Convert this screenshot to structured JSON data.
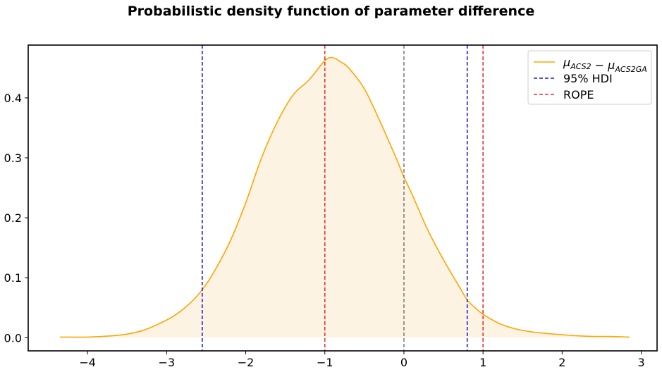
{
  "chart_data": {
    "type": "area",
    "title": "Probabilistic density function of parameter difference",
    "xlabel": "",
    "ylabel": "",
    "xlim": [
      -4.75,
      3.2
    ],
    "ylim": [
      -0.022,
      0.488
    ],
    "xticks": [
      -4,
      -3,
      -2,
      -1,
      0,
      1,
      2,
      3
    ],
    "xtick_labels": [
      "−4",
      "−3",
      "−2",
      "−1",
      "0",
      "1",
      "2",
      "3"
    ],
    "yticks": [
      0.0,
      0.1,
      0.2,
      0.3,
      0.4
    ],
    "ytick_labels": [
      "0.0",
      "0.1",
      "0.2",
      "0.3",
      "0.4"
    ],
    "grid": false,
    "legend_position": "top-right",
    "series": [
      {
        "name": "μACS2 − μACS2GA",
        "legend_parts": [
          {
            "text": "μ",
            "style": "italic"
          },
          {
            "text": "ACS2",
            "style": "sub"
          },
          {
            "text": " − ",
            "style": "normal"
          },
          {
            "text": "μ",
            "style": "italic"
          },
          {
            "text": "ACS2GA",
            "style": "sub"
          }
        ],
        "color": "#FFA500",
        "fill_color": "#FDF3E3",
        "x": [
          -4.35,
          -4.0,
          -3.7,
          -3.5,
          -3.3,
          -3.1,
          -2.9,
          -2.7,
          -2.55,
          -2.4,
          -2.2,
          -2.0,
          -1.8,
          -1.6,
          -1.4,
          -1.2,
          -1.0,
          -0.9,
          -0.8,
          -0.7,
          -0.5,
          -0.3,
          -0.1,
          0.0,
          0.1,
          0.3,
          0.5,
          0.7,
          0.8,
          0.9,
          1.0,
          1.2,
          1.4,
          1.6,
          1.8,
          2.0,
          2.2,
          2.4,
          2.6,
          2.85
        ],
        "values": [
          0.001,
          0.001,
          0.003,
          0.006,
          0.012,
          0.023,
          0.037,
          0.058,
          0.08,
          0.11,
          0.16,
          0.225,
          0.3,
          0.36,
          0.405,
          0.43,
          0.462,
          0.467,
          0.46,
          0.45,
          0.415,
          0.36,
          0.3,
          0.268,
          0.24,
          0.18,
          0.13,
          0.085,
          0.063,
          0.05,
          0.039,
          0.024,
          0.015,
          0.01,
          0.007,
          0.005,
          0.003,
          0.002,
          0.002,
          0.001
        ]
      }
    ],
    "vlines": [
      {
        "label": "95% HDI",
        "x": -2.55,
        "color": "#1F1FCC",
        "in_legend": true
      },
      {
        "label": "",
        "x": 0.8,
        "color": "#1F1FCC",
        "in_legend": false
      },
      {
        "label": "ROPE",
        "x": -1.0,
        "color": "#E8312E",
        "in_legend": true
      },
      {
        "label": "",
        "x": 1.0,
        "color": "#E8312E",
        "in_legend": false
      },
      {
        "label": "",
        "x": 0.0,
        "color": "#7F7F7F",
        "in_legend": false
      }
    ],
    "legend": [
      {
        "label": "μACS2 − μACS2GA",
        "color": "#FFA500",
        "dashed": false
      },
      {
        "label": "95% HDI",
        "color": "#1F1FCC",
        "dashed": true
      },
      {
        "label": "ROPE",
        "color": "#E8312E",
        "dashed": true
      }
    ]
  }
}
